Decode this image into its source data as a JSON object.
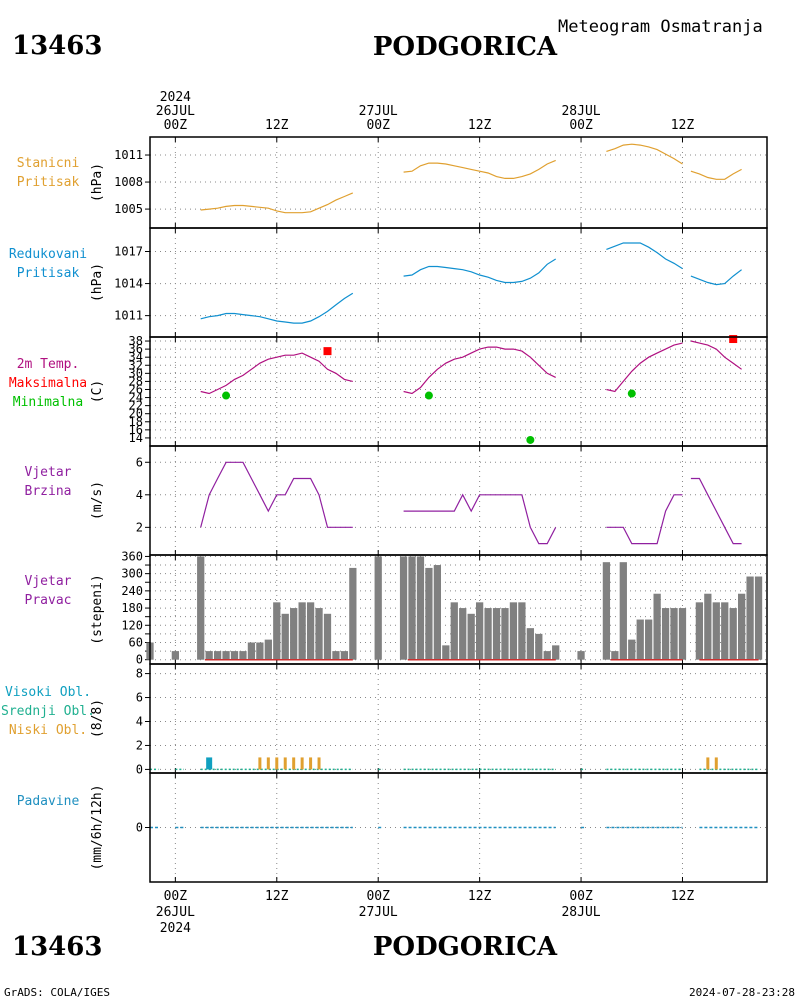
{
  "header": {
    "station_id": "13463",
    "station_name": "PODGORICA",
    "subtitle": "Meteogram Osmatranja",
    "footer_left": "GrADS: COLA/IGES",
    "footer_right": "2024-07-28-23:28"
  },
  "time_axis": {
    "top_labels": [
      {
        "hour": 0,
        "lines": [
          "2024",
          "26JUL",
          "00Z"
        ]
      },
      {
        "hour": 12,
        "lines": [
          "12Z"
        ]
      },
      {
        "hour": 24,
        "lines": [
          "27JUL",
          "00Z"
        ]
      },
      {
        "hour": 36,
        "lines": [
          "12Z"
        ]
      },
      {
        "hour": 48,
        "lines": [
          "28JUL",
          "00Z"
        ]
      },
      {
        "hour": 60,
        "lines": [
          "12Z"
        ]
      }
    ],
    "bottom_labels": [
      {
        "hour": 0,
        "lines": [
          "00Z",
          "26JUL",
          "2024"
        ]
      },
      {
        "hour": 12,
        "lines": [
          "12Z"
        ]
      },
      {
        "hour": 24,
        "lines": [
          "00Z",
          "27JUL"
        ]
      },
      {
        "hour": 36,
        "lines": [
          "12Z"
        ]
      },
      {
        "hour": 48,
        "lines": [
          "00Z",
          "28JUL"
        ]
      },
      {
        "hour": 60,
        "lines": [
          "12Z"
        ]
      }
    ],
    "range_hours": [
      -3,
      70
    ]
  },
  "colors": {
    "pressure": "#e0a030",
    "reduced": "#1090d0",
    "temp": "#b01080",
    "tmax": "#ff0000",
    "tmin": "#00c000",
    "wind": "#9020a0",
    "bars": "#808080",
    "cloud_high": "#10a0c0",
    "cloud_mid": "#20b090",
    "cloud_low": "#e0a030",
    "precip": "#2090c0"
  },
  "chart_data": [
    {
      "type": "line",
      "panel": "station_pressure",
      "label_lines": [
        "Stanicni",
        "Pritisak"
      ],
      "ylabel": "(hPa)",
      "yticks": [
        1005,
        1008,
        1011
      ],
      "ylim": [
        1002.9,
        1013.0
      ],
      "segments": [
        {
          "x": [
            3,
            4,
            5,
            6,
            7,
            8,
            9,
            10,
            11,
            12,
            13,
            14,
            15,
            16,
            17,
            18,
            19,
            20,
            21
          ],
          "y": [
            1004.9,
            1005.0,
            1005.1,
            1005.3,
            1005.4,
            1005.4,
            1005.3,
            1005.2,
            1005.1,
            1004.8,
            1004.6,
            1004.6,
            1004.6,
            1004.7,
            1005.1,
            1005.5,
            1006.0,
            1006.4,
            1006.8
          ]
        },
        {
          "x": [
            27,
            28,
            29,
            30,
            31,
            32,
            33,
            34,
            35,
            36,
            37,
            38,
            39,
            40,
            41,
            42,
            43,
            44,
            45
          ],
          "y": [
            1009.1,
            1009.2,
            1009.8,
            1010.1,
            1010.1,
            1010.0,
            1009.8,
            1009.6,
            1009.4,
            1009.2,
            1009.0,
            1008.6,
            1008.4,
            1008.4,
            1008.6,
            1008.9,
            1009.4,
            1010.0,
            1010.4
          ]
        },
        {
          "x": [
            51,
            52,
            53,
            54,
            55,
            56,
            57,
            58,
            59,
            60
          ],
          "y": [
            1011.4,
            1011.7,
            1012.1,
            1012.2,
            1012.1,
            1011.9,
            1011.6,
            1011.1,
            1010.6,
            1010.0
          ]
        },
        {
          "x": [
            61,
            62,
            63,
            64,
            65,
            66,
            67
          ],
          "y": [
            1009.2,
            1008.9,
            1008.5,
            1008.3,
            1008.3,
            1008.9,
            1009.4
          ]
        }
      ]
    },
    {
      "type": "line",
      "panel": "reduced_pressure",
      "label_lines": [
        "Redukovani",
        "Pritisak"
      ],
      "ylabel": "(hPa)",
      "yticks": [
        1011,
        1014,
        1017
      ],
      "ylim": [
        1009.0,
        1019.2
      ],
      "segments": [
        {
          "x": [
            3,
            4,
            5,
            6,
            7,
            8,
            9,
            10,
            11,
            12,
            13,
            14,
            15,
            16,
            17,
            18,
            19,
            20,
            21
          ],
          "y": [
            1010.7,
            1010.9,
            1011.0,
            1011.2,
            1011.2,
            1011.1,
            1011.0,
            1010.9,
            1010.7,
            1010.5,
            1010.4,
            1010.3,
            1010.3,
            1010.5,
            1010.9,
            1011.4,
            1012.0,
            1012.6,
            1013.1
          ]
        },
        {
          "x": [
            27,
            28,
            29,
            30,
            31,
            32,
            33,
            34,
            35,
            36,
            37,
            38,
            39,
            40,
            41,
            42,
            43,
            44,
            45
          ],
          "y": [
            1014.7,
            1014.8,
            1015.3,
            1015.6,
            1015.6,
            1015.5,
            1015.4,
            1015.3,
            1015.1,
            1014.8,
            1014.6,
            1014.3,
            1014.1,
            1014.1,
            1014.2,
            1014.5,
            1015.0,
            1015.8,
            1016.3
          ]
        },
        {
          "x": [
            51,
            52,
            53,
            54,
            55,
            56,
            57,
            58,
            59,
            60
          ],
          "y": [
            1017.2,
            1017.5,
            1017.8,
            1017.8,
            1017.8,
            1017.4,
            1016.9,
            1016.3,
            1015.9,
            1015.4
          ]
        },
        {
          "x": [
            61,
            62,
            63,
            64,
            65,
            66,
            67
          ],
          "y": [
            1014.7,
            1014.4,
            1014.1,
            1013.9,
            1014.0,
            1014.7,
            1015.3
          ]
        }
      ]
    },
    {
      "type": "line",
      "panel": "temperature",
      "label_lines": [
        "2m Temp.",
        "Maksimalna",
        "Minimalna"
      ],
      "ylabel": "(C)",
      "yticks": [
        14,
        16,
        18,
        20,
        22,
        24,
        26,
        28,
        30,
        32,
        34,
        36,
        38
      ],
      "ylim": [
        12,
        39
      ],
      "segments": [
        {
          "x": [
            3,
            4,
            5,
            6,
            7,
            8,
            9,
            10,
            11,
            12,
            13,
            14,
            15,
            16,
            17,
            18,
            19,
            20,
            21
          ],
          "y": [
            25.5,
            25.0,
            26.0,
            27.0,
            28.5,
            29.5,
            31.0,
            32.5,
            33.5,
            34.0,
            34.5,
            34.5,
            35.0,
            34.0,
            33.0,
            31.0,
            30.0,
            28.5,
            28.0
          ]
        },
        {
          "x": [
            27,
            28,
            29,
            30,
            31,
            32,
            33,
            34,
            35,
            36,
            37,
            38,
            39,
            40,
            41,
            42,
            43,
            44,
            45
          ],
          "y": [
            25.5,
            25.0,
            26.5,
            29.0,
            31.0,
            32.5,
            33.5,
            34.0,
            35.0,
            36.0,
            36.5,
            36.5,
            36.0,
            36.0,
            35.5,
            34.0,
            32.0,
            30.0,
            29.0
          ]
        },
        {
          "x": [
            51,
            52,
            53,
            54,
            55,
            56,
            57,
            58,
            59,
            60
          ],
          "y": [
            26.0,
            25.5,
            28.0,
            30.5,
            32.5,
            34.0,
            35.0,
            36.0,
            37.0,
            37.5
          ]
        },
        {
          "x": [
            61,
            62,
            63,
            64,
            65,
            66,
            67
          ],
          "y": [
            38.0,
            37.5,
            37.0,
            36.0,
            34.0,
            32.5,
            31.0
          ]
        }
      ],
      "tmax": [
        {
          "x": 18,
          "y": 35.5
        },
        {
          "x": 66,
          "y": 38.5
        }
      ],
      "tmin": [
        {
          "x": 6,
          "y": 24.5
        },
        {
          "x": 30,
          "y": 24.5
        },
        {
          "x": 42,
          "y": 13.5
        },
        {
          "x": 54,
          "y": 25.0
        }
      ]
    },
    {
      "type": "line",
      "panel": "wind_speed",
      "label_lines": [
        "Vjetar",
        "Brzina"
      ],
      "ylabel": "(m/s)",
      "yticks": [
        2,
        4,
        6
      ],
      "ylim": [
        0.3,
        7.0
      ],
      "segments": [
        {
          "x": [
            3,
            4,
            5,
            6,
            7,
            8,
            9,
            10,
            11,
            12,
            13,
            14,
            15,
            16,
            17,
            18,
            19,
            20,
            21
          ],
          "y": [
            2,
            4,
            5,
            6,
            6,
            6,
            5,
            4,
            3,
            4,
            4,
            5,
            5,
            5,
            4,
            2,
            2,
            2,
            2
          ]
        },
        {
          "x": [
            27,
            28,
            29,
            30,
            31,
            32,
            33,
            34,
            35,
            36,
            37,
            38,
            39,
            40,
            41,
            42,
            43,
            44,
            45
          ],
          "y": [
            3,
            3,
            3,
            3,
            3,
            3,
            3,
            4,
            3,
            4,
            4,
            4,
            4,
            4,
            4,
            2,
            1,
            1,
            2
          ]
        },
        {
          "x": [
            51,
            52,
            53,
            54,
            55,
            56,
            57,
            58,
            59,
            60
          ],
          "y": [
            2,
            2,
            2,
            1,
            1,
            1,
            1,
            3,
            4,
            4
          ]
        },
        {
          "x": [
            61,
            62,
            63,
            64,
            65,
            66,
            67
          ],
          "y": [
            5,
            5,
            4,
            3,
            2,
            1,
            1
          ]
        }
      ]
    },
    {
      "type": "bar",
      "panel": "wind_direction",
      "label_lines": [
        "Vjetar",
        "Pravac"
      ],
      "ylabel": "(stepeni)",
      "yticks": [
        0,
        30,
        60,
        90,
        120,
        150,
        180,
        210,
        240,
        270,
        300,
        330,
        360
      ],
      "ytick_labels": [
        "0",
        "",
        "60",
        "",
        "120",
        "",
        "180",
        "",
        "240",
        "",
        "300",
        "",
        "360"
      ],
      "ylim": [
        -15,
        365
      ],
      "bars": [
        {
          "x": -3,
          "y": 60
        },
        {
          "x": 0,
          "y": 30
        },
        {
          "x": 3,
          "y": 360
        },
        {
          "x": 4,
          "y": 30
        },
        {
          "x": 5,
          "y": 30
        },
        {
          "x": 6,
          "y": 30
        },
        {
          "x": 7,
          "y": 30
        },
        {
          "x": 8,
          "y": 30
        },
        {
          "x": 9,
          "y": 60
        },
        {
          "x": 10,
          "y": 60
        },
        {
          "x": 11,
          "y": 70
        },
        {
          "x": 12,
          "y": 200
        },
        {
          "x": 13,
          "y": 160
        },
        {
          "x": 14,
          "y": 180
        },
        {
          "x": 15,
          "y": 200
        },
        {
          "x": 16,
          "y": 200
        },
        {
          "x": 17,
          "y": 180
        },
        {
          "x": 18,
          "y": 160
        },
        {
          "x": 19,
          "y": 30
        },
        {
          "x": 20,
          "y": 30
        },
        {
          "x": 21,
          "y": 320
        },
        {
          "x": 24,
          "y": 360
        },
        {
          "x": 27,
          "y": 360
        },
        {
          "x": 28,
          "y": 360
        },
        {
          "x": 29,
          "y": 360
        },
        {
          "x": 30,
          "y": 320
        },
        {
          "x": 31,
          "y": 330
        },
        {
          "x": 32,
          "y": 50
        },
        {
          "x": 33,
          "y": 200
        },
        {
          "x": 34,
          "y": 180
        },
        {
          "x": 35,
          "y": 160
        },
        {
          "x": 36,
          "y": 200
        },
        {
          "x": 37,
          "y": 180
        },
        {
          "x": 38,
          "y": 180
        },
        {
          "x": 39,
          "y": 180
        },
        {
          "x": 40,
          "y": 200
        },
        {
          "x": 41,
          "y": 200
        },
        {
          "x": 42,
          "y": 110
        },
        {
          "x": 43,
          "y": 90
        },
        {
          "x": 44,
          "y": 30
        },
        {
          "x": 45,
          "y": 50
        },
        {
          "x": 48,
          "y": 30
        },
        {
          "x": 51,
          "y": 340
        },
        {
          "x": 52,
          "y": 30
        },
        {
          "x": 53,
          "y": 340
        },
        {
          "x": 54,
          "y": 70
        },
        {
          "x": 55,
          "y": 140
        },
        {
          "x": 56,
          "y": 140
        },
        {
          "x": 57,
          "y": 230
        },
        {
          "x": 58,
          "y": 180
        },
        {
          "x": 59,
          "y": 180
        },
        {
          "x": 60,
          "y": 180
        },
        {
          "x": 62,
          "y": 200
        },
        {
          "x": 63,
          "y": 230
        },
        {
          "x": 64,
          "y": 200
        },
        {
          "x": 65,
          "y": 200
        },
        {
          "x": 66,
          "y": 180
        },
        {
          "x": 67,
          "y": 230
        },
        {
          "x": 68,
          "y": 290
        },
        {
          "x": 69,
          "y": 290
        }
      ],
      "baseline_segments": [
        [
          3.5,
          21
        ],
        [
          27.5,
          45
        ],
        [
          51.5,
          60
        ],
        [
          62,
          69
        ]
      ]
    },
    {
      "type": "bar",
      "panel": "cloud_cover",
      "label_lines": [
        "Visoki Obl.",
        "Srednji Obl.",
        "Niski Obl."
      ],
      "ylabel": "(8/8)",
      "yticks": [
        0,
        2,
        4,
        6,
        8
      ],
      "ylim": [
        -0.3,
        8.8
      ],
      "high_bars": [
        {
          "x": 4,
          "y": 1
        }
      ],
      "low_bars": [
        {
          "x": 10,
          "y": 1
        },
        {
          "x": 11,
          "y": 1
        },
        {
          "x": 12,
          "y": 1
        },
        {
          "x": 13,
          "y": 1
        },
        {
          "x": 14,
          "y": 1
        },
        {
          "x": 15,
          "y": 1
        },
        {
          "x": 16,
          "y": 1
        },
        {
          "x": 17,
          "y": 1
        },
        {
          "x": 63,
          "y": 1
        },
        {
          "x": 64,
          "y": 1
        }
      ],
      "baseline_segments": [
        [
          -3,
          -2
        ],
        [
          0,
          1
        ],
        [
          3,
          21
        ],
        [
          24,
          24.5
        ],
        [
          27,
          45
        ],
        [
          48,
          48.5
        ],
        [
          51,
          60
        ],
        [
          62,
          69
        ]
      ]
    },
    {
      "type": "bar",
      "panel": "precipitation",
      "label_lines": [
        "Padavine"
      ],
      "ylabel": "(mm/6h/12h)",
      "yticks": [
        0
      ],
      "ylim": [
        -3.5,
        3.5
      ],
      "values": [],
      "baseline_segments": [
        [
          -3,
          -2
        ],
        [
          0,
          1
        ],
        [
          3,
          21
        ],
        [
          24,
          24.5
        ],
        [
          27,
          45
        ],
        [
          48,
          48.5
        ],
        [
          51,
          60
        ],
        [
          62,
          69
        ]
      ]
    }
  ]
}
